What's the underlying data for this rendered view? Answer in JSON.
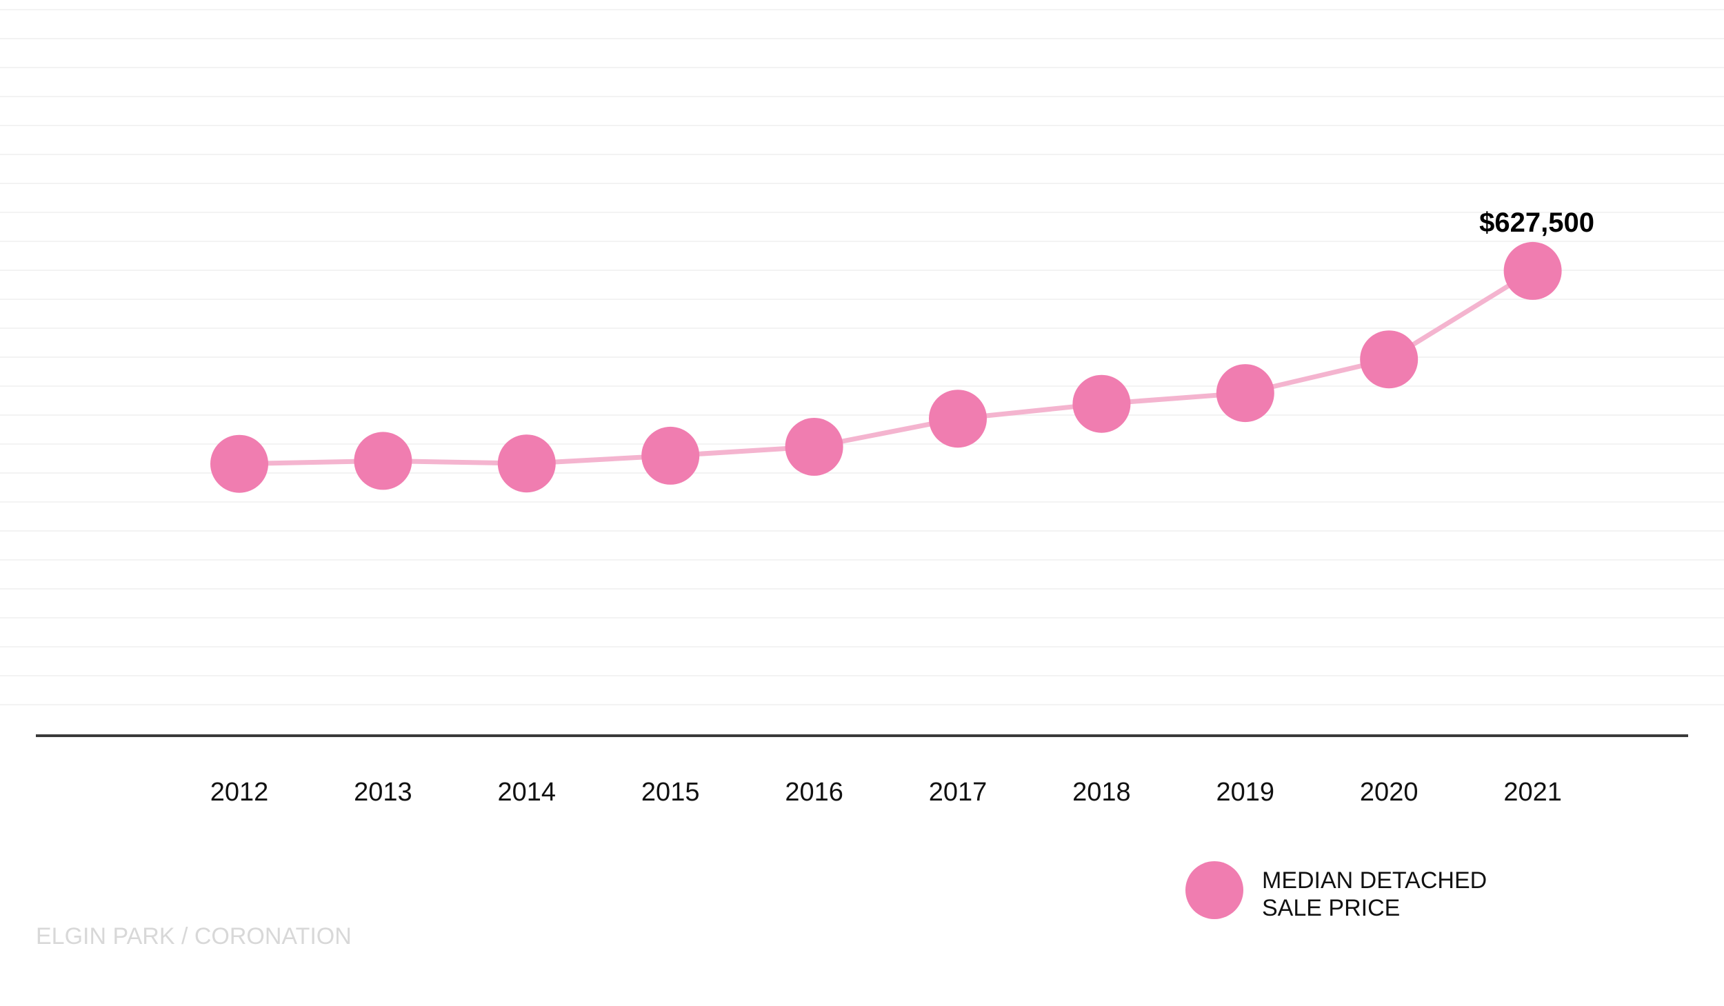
{
  "chart_data": {
    "type": "line",
    "title": "",
    "xlabel": "",
    "ylabel": "",
    "categories": [
      "2012",
      "2013",
      "2014",
      "2015",
      "2016",
      "2017",
      "2018",
      "2019",
      "2020",
      "2021"
    ],
    "series": [
      {
        "name": "MEDIAN DETACHED SALE PRICE",
        "values": [
          367000,
          371000,
          367500,
          378000,
          390000,
          428000,
          448000,
          462500,
          508000,
          627500
        ]
      }
    ],
    "ylim": [
      0,
      982000
    ],
    "grid": true,
    "axis_labels_visible": false,
    "data_labels": [
      {
        "category": "2021",
        "text": "$627,500"
      }
    ],
    "legend": {
      "placement": "bottom-right",
      "lines": [
        "MEDIAN DETACHED",
        "SALE PRICE"
      ]
    },
    "colors": {
      "marker": "#f07db0",
      "line": "#f4b4cf",
      "baseline": "#3a3a3a",
      "grid": "#f3f3f3"
    }
  },
  "footer": {
    "source": "ELGIN PARK / CORONATION"
  }
}
